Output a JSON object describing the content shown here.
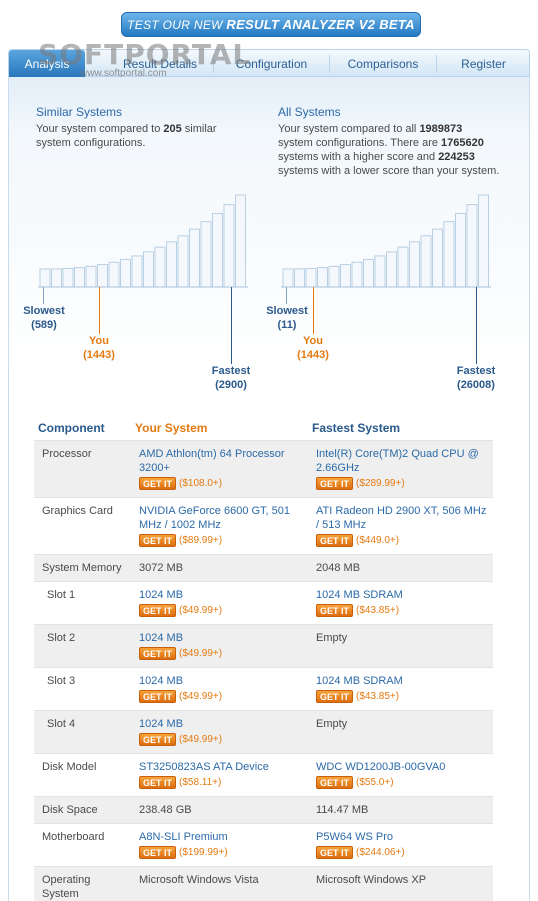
{
  "banner": {
    "prefix": "TEST OUR NEW ",
    "bold": "RESULT ANALYZER V2 BETA"
  },
  "watermark": {
    "brand": "SOFTPORTAL",
    "url": "www.softportal.com"
  },
  "tabs": [
    {
      "label": "Analysis",
      "active": true
    },
    {
      "label": "Result Details",
      "active": false
    },
    {
      "label": "Configuration",
      "active": false
    },
    {
      "label": "Comparisons",
      "active": false
    },
    {
      "label": "Register",
      "active": false
    }
  ],
  "similar": {
    "title": "Similar Systems",
    "text_pre": "Your system compared to ",
    "count": "205",
    "text_post": " similar system configurations.",
    "slowest_label": "Slowest",
    "slowest_value": "(589)",
    "you_label": "You",
    "you_value": "(1443)",
    "fastest_label": "Fastest",
    "fastest_value": "(2900)",
    "you_fraction": 0.3
  },
  "all": {
    "title": "All Systems",
    "text_1": "Your system compared to all ",
    "total": "1989873",
    "text_2": " system configurations. There are ",
    "higher": "1765620",
    "text_3": " systems with a higher score and ",
    "lower": "224253",
    "text_4": " systems with a lower score than your system.",
    "slowest_label": "Slowest",
    "slowest_value": "(11)",
    "you_label": "You",
    "you_value": "(1443)",
    "fastest_label": "Fastest",
    "fastest_value": "(26008)",
    "you_fraction": 0.14
  },
  "table": {
    "headers": {
      "component": "Component",
      "yours": "Your System",
      "fastest": "Fastest System"
    },
    "getit_label": "GET IT",
    "rows": [
      {
        "component": "Processor",
        "slot": false,
        "yours": "AMD Athlon(tm) 64 Processor 3200+",
        "yours_price": "($108.0+)",
        "fastest": "Intel(R) Core(TM)2 Quad CPU @ 2.66GHz",
        "fastest_price": "($289.99+)"
      },
      {
        "component": "Graphics Card",
        "slot": false,
        "yours": "NVIDIA GeForce 6600 GT, 501 MHz / 1002 MHz",
        "yours_price": "($89.99+)",
        "fastest": "ATI Radeon HD 2900 XT, 506 MHz / 513 MHz",
        "fastest_price": "($449.0+)"
      },
      {
        "component": "System Memory",
        "slot": false,
        "yours": "3072 MB",
        "yours_price": "",
        "fastest": "2048 MB",
        "fastest_price": ""
      },
      {
        "component": "Slot 1",
        "slot": true,
        "yours": "1024 MB",
        "yours_price": "($49.99+)",
        "fastest": "1024 MB SDRAM",
        "fastest_price": "($43.85+)"
      },
      {
        "component": "Slot 2",
        "slot": true,
        "yours": "1024 MB",
        "yours_price": "($49.99+)",
        "fastest": "Empty",
        "fastest_price": ""
      },
      {
        "component": "Slot 3",
        "slot": true,
        "yours": "1024 MB",
        "yours_price": "($49.99+)",
        "fastest": "1024 MB SDRAM",
        "fastest_price": "($43.85+)"
      },
      {
        "component": "Slot 4",
        "slot": true,
        "yours": "1024 MB",
        "yours_price": "($49.99+)",
        "fastest": "Empty",
        "fastest_price": ""
      },
      {
        "component": "Disk Model",
        "slot": false,
        "yours": "ST3250823AS ATA Device",
        "yours_price": "($58.11+)",
        "fastest": "WDC WD1200JB-00GVA0",
        "fastest_price": "($55.0+)"
      },
      {
        "component": "Disk Space",
        "slot": false,
        "yours": "238.48 GB",
        "yours_price": "",
        "fastest": "114.47 MB",
        "fastest_price": ""
      },
      {
        "component": "Motherboard",
        "slot": false,
        "yours": "A8N-SLI Premium",
        "yours_price": "($199.99+)",
        "fastest": "P5W64 WS Pro",
        "fastest_price": "($244.06+)"
      },
      {
        "component": "Operating System",
        "slot": false,
        "yours": "Microsoft Windows Vista",
        "yours_price": "",
        "fastest": "Microsoft Windows XP",
        "fastest_price": ""
      }
    ]
  }
}
